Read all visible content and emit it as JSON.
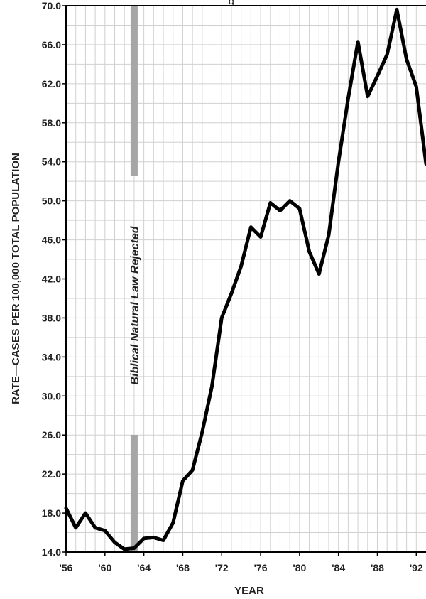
{
  "chart_data": {
    "type": "line",
    "title": "",
    "title_fragment": "g",
    "xlabel": "YEAR",
    "ylabel": "RATE—CASES PER 100,000 TOTAL POPULATION",
    "xlim": [
      1956,
      1993
    ],
    "ylim": [
      14,
      70
    ],
    "x_ticks": [
      {
        "value": 1956,
        "label": "'56"
      },
      {
        "value": 1960,
        "label": "'60"
      },
      {
        "value": 1964,
        "label": "'64"
      },
      {
        "value": 1968,
        "label": "'68"
      },
      {
        "value": 1972,
        "label": "'72"
      },
      {
        "value": 1976,
        "label": "'76"
      },
      {
        "value": 1980,
        "label": "'80"
      },
      {
        "value": 1984,
        "label": "'84"
      },
      {
        "value": 1988,
        "label": "'88"
      },
      {
        "value": 1992,
        "label": "'92"
      }
    ],
    "y_ticks": [
      {
        "value": 14,
        "label": "14.0"
      },
      {
        "value": 18,
        "label": "18.0"
      },
      {
        "value": 22,
        "label": "22.0"
      },
      {
        "value": 26,
        "label": "26.0"
      },
      {
        "value": 30,
        "label": "30.0"
      },
      {
        "value": 34,
        "label": "34.0"
      },
      {
        "value": 38,
        "label": "38.0"
      },
      {
        "value": 42,
        "label": "42.0"
      },
      {
        "value": 46,
        "label": "46.0"
      },
      {
        "value": 50,
        "label": "50.0"
      },
      {
        "value": 54,
        "label": "54.0"
      },
      {
        "value": 58,
        "label": "58.0"
      },
      {
        "value": 62,
        "label": "62.0"
      },
      {
        "value": 66,
        "label": "66.0"
      },
      {
        "value": 70,
        "label": "70.0"
      }
    ],
    "grid": true,
    "legend": "none",
    "series": [
      {
        "x": [
          1956,
          1957,
          1958,
          1959,
          1960,
          1961,
          1962,
          1963,
          1964,
          1965,
          1966,
          1967,
          1968,
          1969,
          1970,
          1971,
          1972,
          1973,
          1974,
          1975,
          1976,
          1977,
          1978,
          1979,
          1980,
          1981,
          1982,
          1983,
          1984,
          1985,
          1986,
          1987,
          1988,
          1989,
          1990,
          1991,
          1992,
          1993
        ],
        "y": [
          18.5,
          16.5,
          18.0,
          16.5,
          16.2,
          15.0,
          14.3,
          14.4,
          15.4,
          15.5,
          15.2,
          17.0,
          21.3,
          22.4,
          26.3,
          31.0,
          38.0,
          40.5,
          43.3,
          47.3,
          46.3,
          49.8,
          49.0,
          50.0,
          49.2,
          44.8,
          42.5,
          46.5,
          54.0,
          60.5,
          66.3,
          60.7,
          62.8,
          65.0,
          69.6,
          64.5,
          61.7,
          53.8
        ]
      }
    ],
    "annotations": [
      {
        "type": "vertical-band",
        "x": 1963,
        "label": "Biblical Natural Law Rejected"
      }
    ],
    "colors": {
      "line": "#000000",
      "annotation_band": "#a6a6a6",
      "grid": "#d0d0d0"
    }
  }
}
